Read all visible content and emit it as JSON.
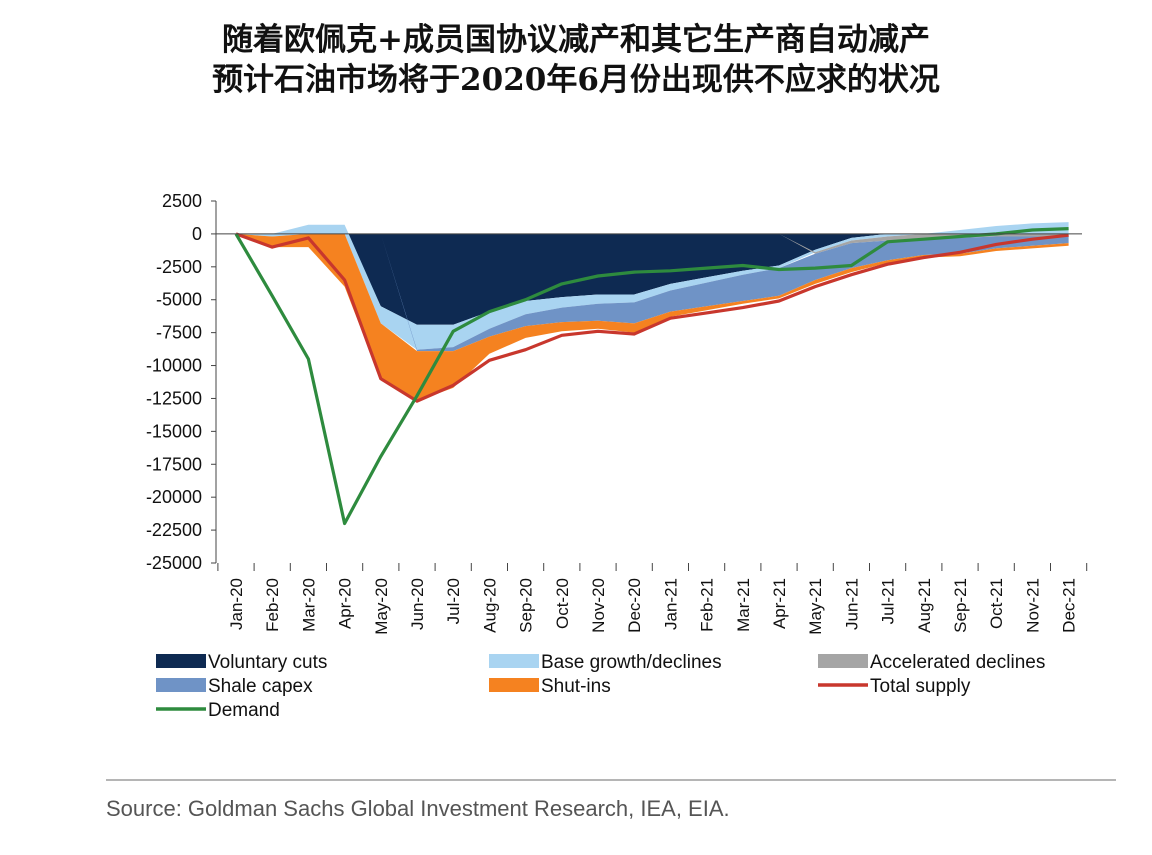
{
  "title_lines": [
    "随着欧佩克+成员国协议减产和其它生产商自动减产",
    "预计石油市场将于2020年6月份出现供不应求的状况"
  ],
  "source": "Source: Goldman Sachs Global Investment Research, IEA, EIA.",
  "chart_data": {
    "type": "area",
    "title": "随着欧佩克+成员国协议减产和其它生产商自动减产 预计石油市场将于2020年6月份出现供不应求的状况",
    "xlabel": "",
    "ylabel": "",
    "ylim": [
      -25000,
      2500
    ],
    "yticks": [
      2500,
      0,
      -2500,
      -5000,
      -7500,
      -10000,
      -12500,
      -15000,
      -17500,
      -20000,
      -22500,
      -25000
    ],
    "ytick_labels": [
      "2500",
      "0",
      "-2500",
      "-5000",
      "-7500",
      "-10000",
      "-12500",
      "-15000",
      "-17500",
      "-20000",
      "-22500",
      "-25000"
    ],
    "categories": [
      "Jan-20",
      "Feb-20",
      "Mar-20",
      "Apr-20",
      "May-20",
      "Jun-20",
      "Jul-20",
      "Aug-20",
      "Sep-20",
      "Oct-20",
      "Nov-20",
      "Dec-20",
      "Jan-21",
      "Feb-21",
      "Mar-21",
      "Apr-21",
      "May-21",
      "Jun-21",
      "Jul-21",
      "Aug-21",
      "Sep-21",
      "Oct-21",
      "Nov-21",
      "Dec-21"
    ],
    "grid": false,
    "legend_position": "bottom",
    "series": [
      {
        "name": "Voluntary cuts",
        "kind": "area",
        "color": "#0e2a52",
        "values": [
          0,
          0,
          0,
          0,
          -5500,
          -6900,
          -6900,
          -5900,
          -5100,
          -4800,
          -4600,
          -4600,
          -3800,
          -3300,
          -2800,
          -2400,
          -1200,
          -300,
          0,
          0,
          0,
          0,
          0,
          0
        ]
      },
      {
        "name": "Base growth/declines",
        "kind": "area",
        "color": "#a9d4f1",
        "values": [
          0,
          -200,
          700,
          700,
          -1300,
          -1900,
          -1700,
          -1300,
          -1000,
          -800,
          -700,
          -600,
          -500,
          -400,
          -300,
          -200,
          -200,
          -200,
          -200,
          0,
          300,
          600,
          800,
          900
        ]
      },
      {
        "name": "Accelerated declines",
        "kind": "area",
        "color": "#a5a5a5",
        "values": [
          0,
          0,
          0,
          0,
          0,
          0,
          0,
          0,
          0,
          0,
          0,
          0,
          0,
          0,
          0,
          0,
          -100,
          -200,
          -300,
          -300,
          -300,
          -200,
          -200,
          -200
        ]
      },
      {
        "name": "Shale capex",
        "kind": "area",
        "color": "#6f93c6",
        "values": [
          0,
          0,
          0,
          0,
          0,
          -100,
          -300,
          -600,
          -900,
          -1100,
          -1300,
          -1600,
          -1600,
          -1800,
          -2000,
          -2100,
          -2000,
          -1900,
          -1500,
          -1300,
          -1200,
          -900,
          -700,
          -500
        ]
      },
      {
        "name": "Shut-ins",
        "kind": "area",
        "color": "#f58220",
        "values": [
          0,
          -800,
          -1000,
          -4000,
          -4300,
          -3800,
          -2800,
          -1300,
          -900,
          -700,
          -600,
          -700,
          -400,
          -300,
          -200,
          -200,
          -300,
          -300,
          -200,
          -200,
          -200,
          -200,
          -200,
          -200
        ]
      },
      {
        "name": "Total supply",
        "kind": "line",
        "color": "#c8372d",
        "values": [
          0,
          -1000,
          -300,
          -3500,
          -11000,
          -12700,
          -11500,
          -9600,
          -8800,
          -7700,
          -7400,
          -7600,
          -6400,
          -6000,
          -5600,
          -5100,
          -4000,
          -3100,
          -2300,
          -1800,
          -1400,
          -800,
          -400,
          -100
        ]
      },
      {
        "name": "Demand",
        "kind": "line",
        "color": "#2e8b3e",
        "values": [
          0,
          -4700,
          -9500,
          -22000,
          -16900,
          -12300,
          -7400,
          -5900,
          -5000,
          -3800,
          -3200,
          -2900,
          -2800,
          -2600,
          -2400,
          -2700,
          -2600,
          -2400,
          -600,
          -400,
          -200,
          0,
          300,
          400
        ]
      }
    ]
  }
}
